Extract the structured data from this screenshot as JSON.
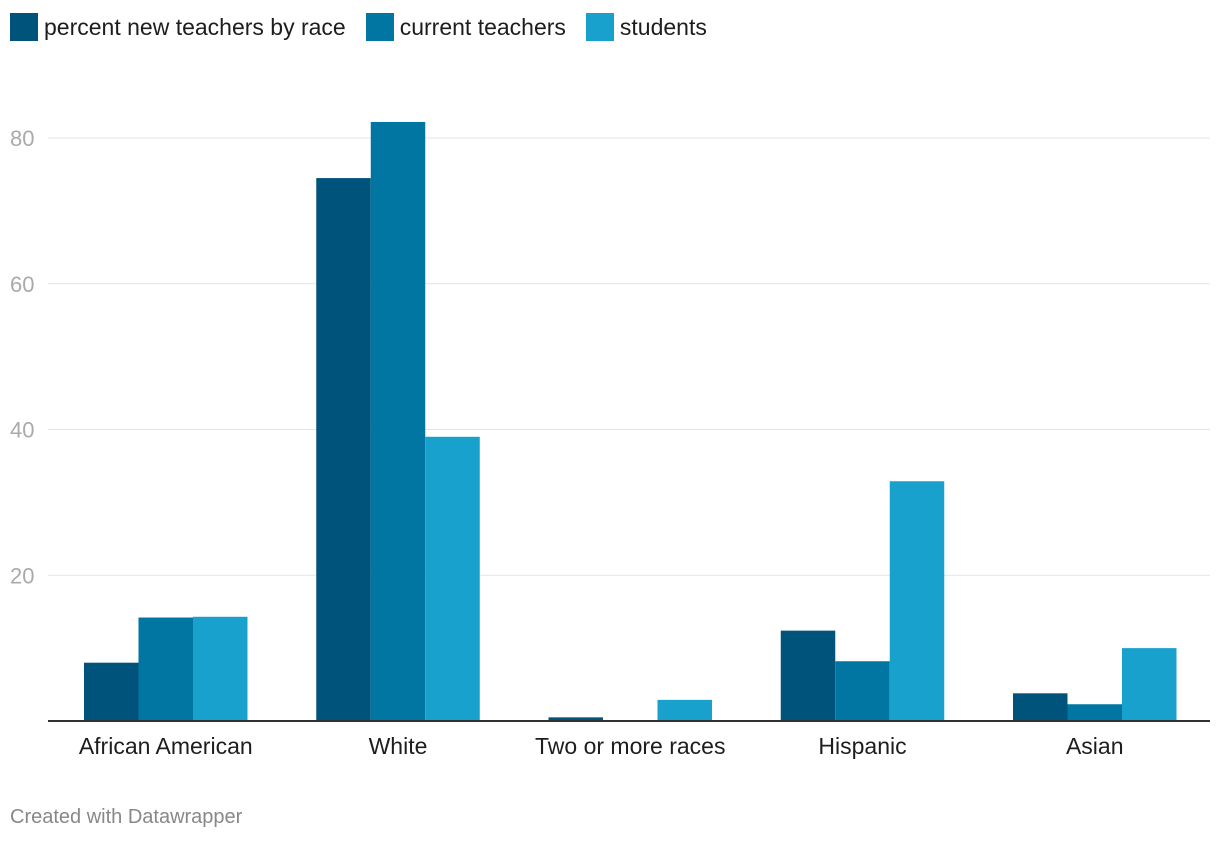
{
  "chart_data": {
    "type": "bar",
    "title": "",
    "xlabel": "",
    "ylabel": "",
    "categories": [
      "African American",
      "White",
      "Two or more races",
      "Hispanic",
      "Asian"
    ],
    "series": [
      {
        "name": "percent new teachers by race",
        "color": "#00537a",
        "values": [
          8.0,
          74.5,
          0.5,
          12.4,
          3.8
        ]
      },
      {
        "name": "current teachers",
        "color": "#0176a3",
        "values": [
          14.2,
          82.2,
          0.0,
          8.2,
          2.3
        ]
      },
      {
        "name": "students",
        "color": "#19a1ce",
        "values": [
          14.3,
          39.0,
          2.9,
          32.9,
          10.0
        ]
      }
    ],
    "ylim": [
      0,
      80
    ],
    "yticks": [
      20,
      40,
      60,
      80
    ],
    "grid": true,
    "legend_position": "top-left"
  },
  "footer": {
    "credit": "Created with Datawrapper"
  }
}
